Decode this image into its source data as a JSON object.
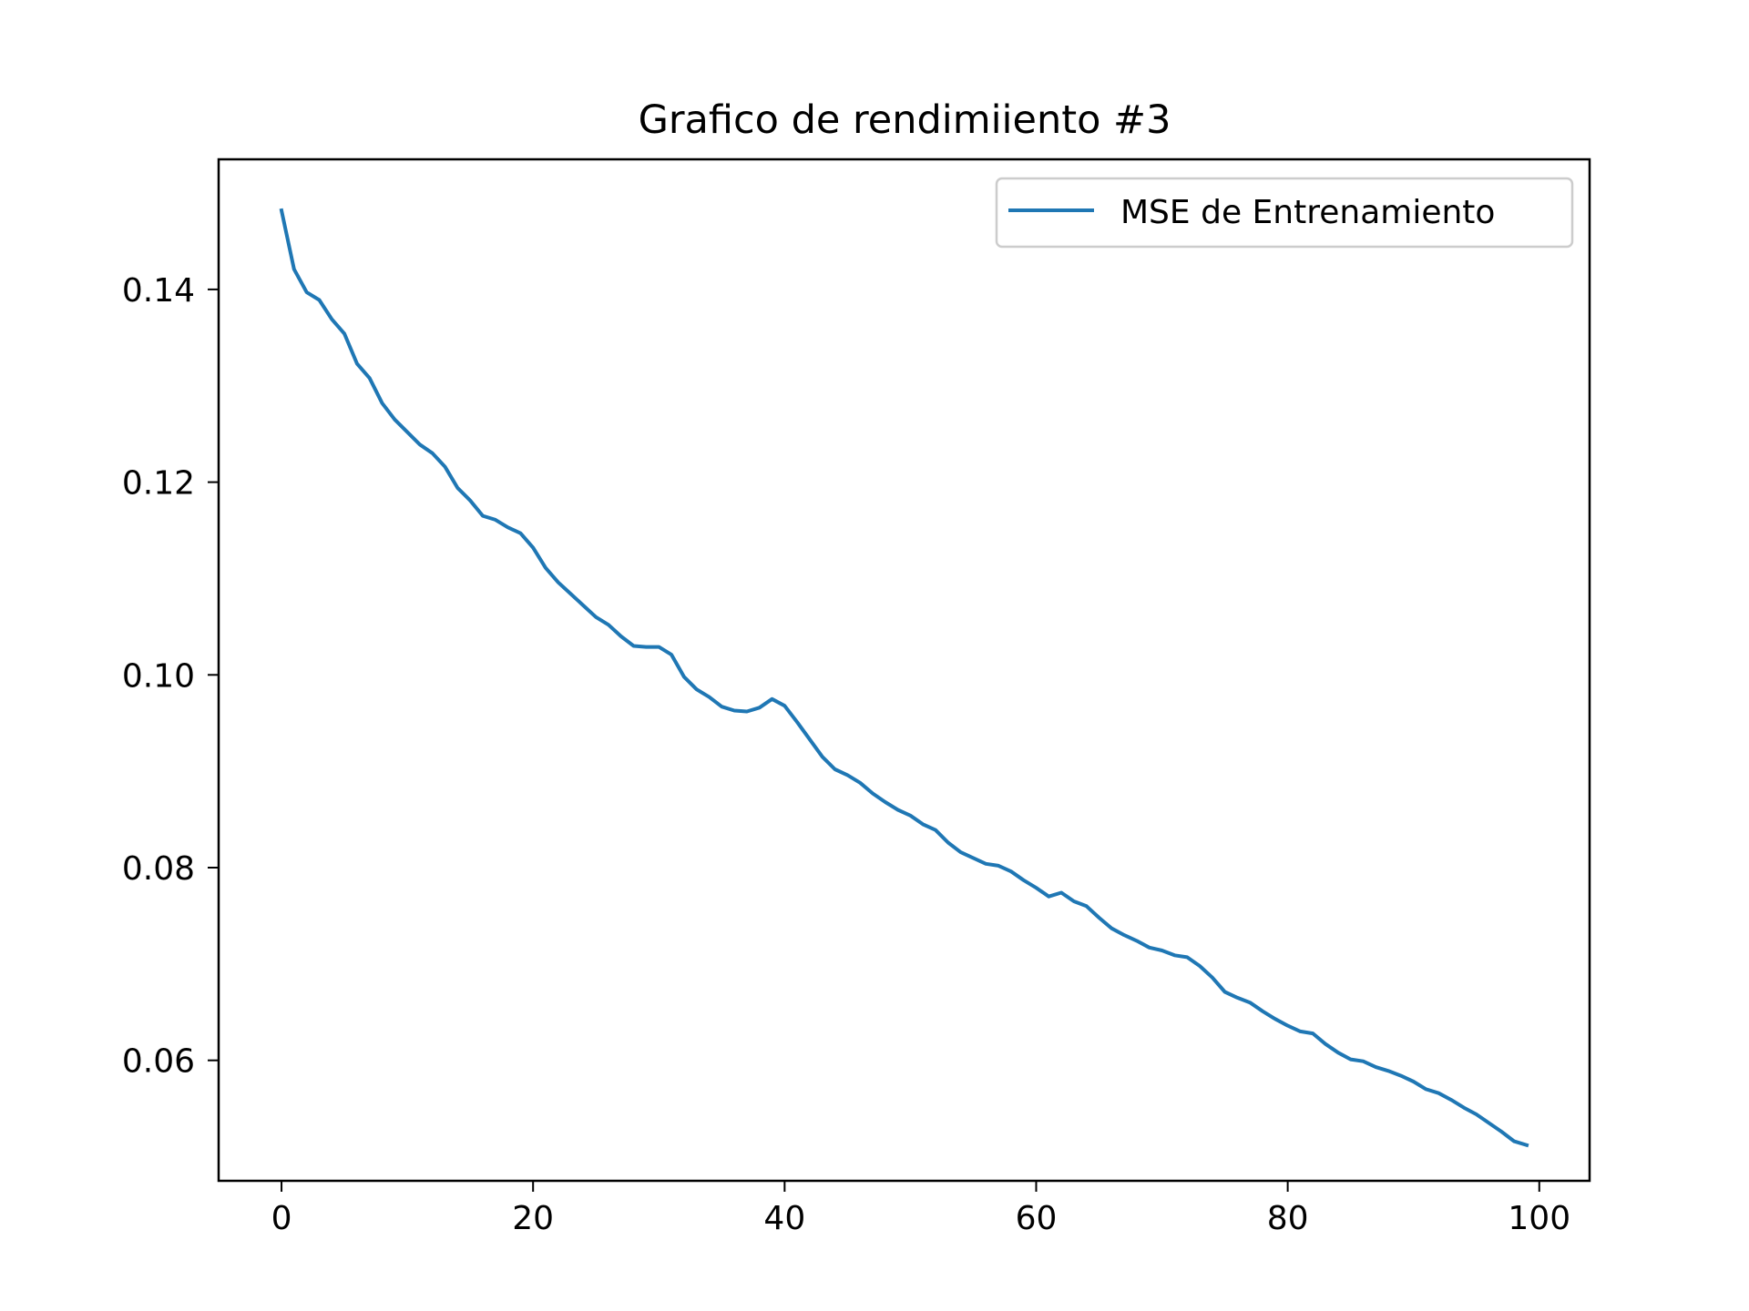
{
  "chart_data": {
    "type": "line",
    "title": "Grafico de rendimiiento #3",
    "xlabel": "",
    "ylabel": "",
    "xlim": [
      -5,
      104
    ],
    "ylim": [
      0.0475,
      0.1535
    ],
    "x_ticks": [
      0,
      20,
      40,
      60,
      80,
      100
    ],
    "y_ticks": [
      0.06,
      0.08,
      0.1,
      0.12,
      0.14
    ],
    "x_tick_labels": [
      "0",
      "20",
      "40",
      "60",
      "80",
      "100"
    ],
    "y_tick_labels": [
      "0.06",
      "0.08",
      "0.10",
      "0.12",
      "0.14"
    ],
    "grid": false,
    "legend": {
      "position": "upper-right"
    },
    "series": [
      {
        "name": "MSE de Entrenamiento",
        "color": "#1f77b4",
        "x": [
          0,
          1,
          2,
          3,
          4,
          5,
          6,
          7,
          8,
          9,
          10,
          11,
          12,
          13,
          14,
          15,
          16,
          17,
          18,
          19,
          20,
          21,
          22,
          23,
          24,
          25,
          26,
          27,
          28,
          29,
          30,
          31,
          32,
          33,
          34,
          35,
          36,
          37,
          38,
          39,
          40,
          41,
          42,
          43,
          44,
          45,
          46,
          47,
          48,
          49,
          50,
          51,
          52,
          53,
          54,
          55,
          56,
          57,
          58,
          59,
          60,
          61,
          62,
          63,
          64,
          65,
          66,
          67,
          68,
          69,
          70,
          71,
          72,
          73,
          74,
          75,
          76,
          77,
          78,
          79,
          80,
          81,
          82,
          83,
          84,
          85,
          86,
          87,
          88,
          89,
          90,
          91,
          92,
          93,
          94,
          95,
          96,
          97,
          98,
          99
        ],
        "values": [
          0.1482,
          0.1421,
          0.1397,
          0.1389,
          0.1369,
          0.1354,
          0.1323,
          0.1308,
          0.1282,
          0.1265,
          0.1252,
          0.1239,
          0.123,
          0.1216,
          0.1194,
          0.1181,
          0.1165,
          0.1161,
          0.1153,
          0.1147,
          0.1132,
          0.1111,
          0.1096,
          0.1084,
          0.1072,
          0.106,
          0.1052,
          0.104,
          0.103,
          0.1029,
          0.1029,
          0.1021,
          0.0998,
          0.0985,
          0.0977,
          0.0967,
          0.0963,
          0.0962,
          0.0966,
          0.0975,
          0.0968,
          0.0951,
          0.0933,
          0.0915,
          0.0902,
          0.0896,
          0.0888,
          0.0877,
          0.0868,
          0.086,
          0.0854,
          0.0845,
          0.0839,
          0.0826,
          0.0816,
          0.081,
          0.0804,
          0.0802,
          0.0796,
          0.0787,
          0.0779,
          0.077,
          0.0774,
          0.0765,
          0.076,
          0.0748,
          0.0737,
          0.073,
          0.0724,
          0.0717,
          0.0714,
          0.0709,
          0.0707,
          0.0698,
          0.0686,
          0.0671,
          0.0665,
          0.066,
          0.0651,
          0.0643,
          0.0636,
          0.063,
          0.0628,
          0.0617,
          0.0608,
          0.0601,
          0.0599,
          0.0593,
          0.0589,
          0.0584,
          0.0578,
          0.057,
          0.0566,
          0.0559,
          0.0551,
          0.0544,
          0.0535,
          0.0526,
          0.0516,
          0.0512
        ]
      }
    ]
  }
}
